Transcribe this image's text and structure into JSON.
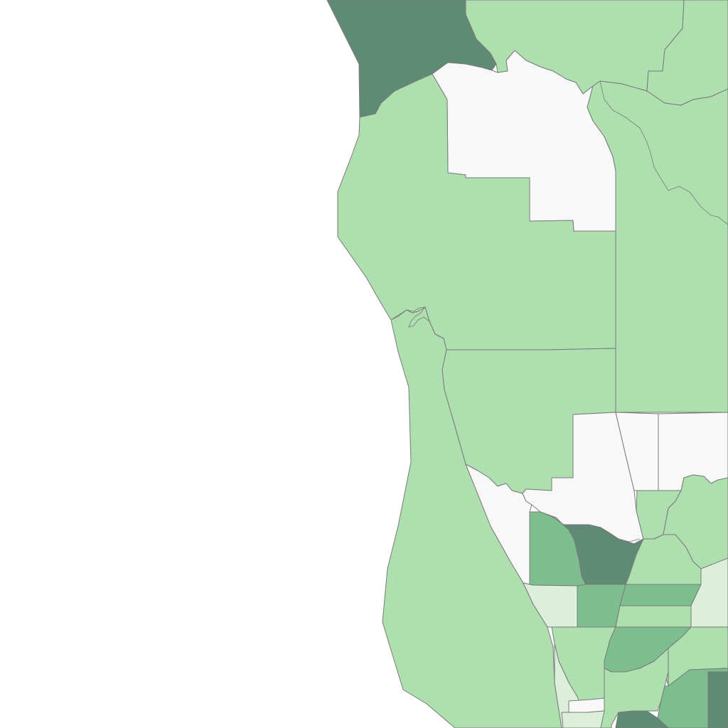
{
  "map": {
    "background_color": "#ffffff",
    "stroke_color": "#7a7a7a",
    "fill_levels": {
      "none": "#f7f8f7",
      "light": "#dcefd8",
      "medium": "#aedfae",
      "strong": "#7dbe8f",
      "dark": "#5f8a73"
    },
    "regions": [
      {
        "name": "northwest-dark-region",
        "level": "dark"
      },
      {
        "name": "north-center-light-region",
        "level": "medium"
      },
      {
        "name": "north-white-region",
        "level": "none"
      },
      {
        "name": "coastal-large-region",
        "level": "medium"
      },
      {
        "name": "east-river-region",
        "level": "medium"
      },
      {
        "name": "central-west-region",
        "level": "medium"
      },
      {
        "name": "central-plain-region",
        "level": "medium"
      },
      {
        "name": "southwest-coastal-region",
        "level": "medium"
      },
      {
        "name": "south-white-region-a",
        "level": "none"
      },
      {
        "name": "south-white-region-b",
        "level": "none"
      },
      {
        "name": "south-white-region-c",
        "level": "none"
      },
      {
        "name": "south-white-region-d",
        "level": "none"
      },
      {
        "name": "southeast-light-region",
        "level": "medium"
      },
      {
        "name": "south-strong-region-a",
        "level": "strong"
      },
      {
        "name": "south-dark-region-a",
        "level": "dark"
      },
      {
        "name": "south-pale-region-a",
        "level": "light"
      },
      {
        "name": "south-strong-region-b",
        "level": "strong"
      },
      {
        "name": "south-strong-region-c",
        "level": "strong"
      },
      {
        "name": "south-pale-region-b",
        "level": "light"
      },
      {
        "name": "south-medium-region-a",
        "level": "medium"
      },
      {
        "name": "south-strong-region-d",
        "level": "strong"
      },
      {
        "name": "south-pale-region-c",
        "level": "light"
      },
      {
        "name": "south-medium-region-b",
        "level": "medium"
      },
      {
        "name": "south-dark-region-b",
        "level": "dark"
      },
      {
        "name": "south-strong-region-e",
        "level": "strong"
      },
      {
        "name": "south-dark-region-c",
        "level": "dark"
      },
      {
        "name": "south-white-region-e",
        "level": "none"
      },
      {
        "name": "south-pale-region-d",
        "level": "light"
      }
    ]
  }
}
